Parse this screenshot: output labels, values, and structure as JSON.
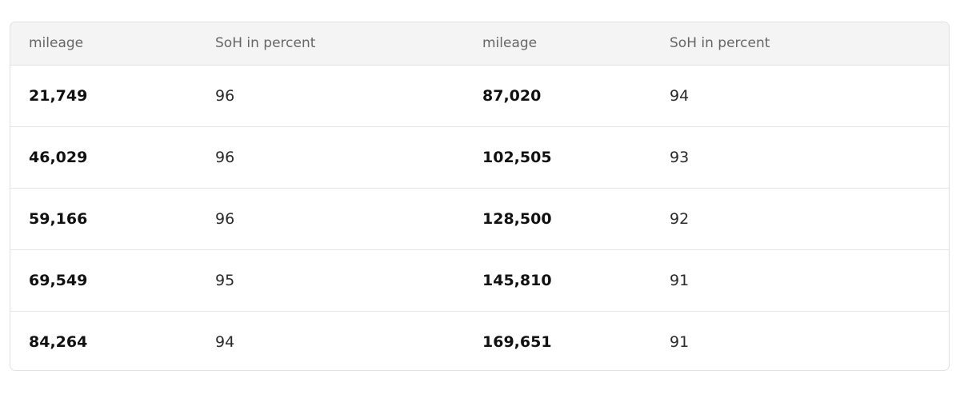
{
  "table": {
    "headers": [
      "mileage",
      "SoH in percent",
      "mileage",
      "SoH in percent"
    ],
    "rows": [
      [
        "21,749",
        "96",
        "87,020",
        "94"
      ],
      [
        "46,029",
        "96",
        "102,505",
        "93"
      ],
      [
        "59,166",
        "96",
        "128,500",
        "92"
      ],
      [
        "69,549",
        "95",
        "145,810",
        "91"
      ],
      [
        "84,264",
        "94",
        "169,651",
        "91"
      ]
    ]
  }
}
